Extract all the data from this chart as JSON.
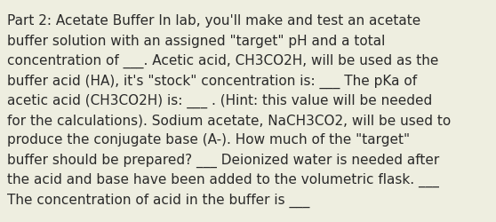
{
  "background_color": "#eeeee0",
  "text_color": "#2a2a2a",
  "lines": [
    "Part 2: Acetate Buffer In lab, you'll make and test an acetate",
    "buffer solution with an assigned \"target\" pH and a total",
    "concentration of ___. Acetic acid, CH3CO2H, will be used as the",
    "buffer acid (HA), it's \"stock\" concentration is: ___ The pKa of",
    "acetic acid (CH3CO2H) is: ___ . (Hint: this value will be needed",
    "for the calculations). Sodium acetate, NaCH3CO2, will be used to",
    "produce the conjugate base (A-). How much of the \"target\"",
    "buffer should be prepared? ___ Deionized water is needed after",
    "the acid and base have been added to the volumetric flask. ___",
    "The concentration of acid in the buffer is ___"
  ],
  "font_size": 11.0,
  "font_family": "DejaVu Sans",
  "fig_width": 5.58,
  "fig_height": 2.51,
  "dpi": 100
}
